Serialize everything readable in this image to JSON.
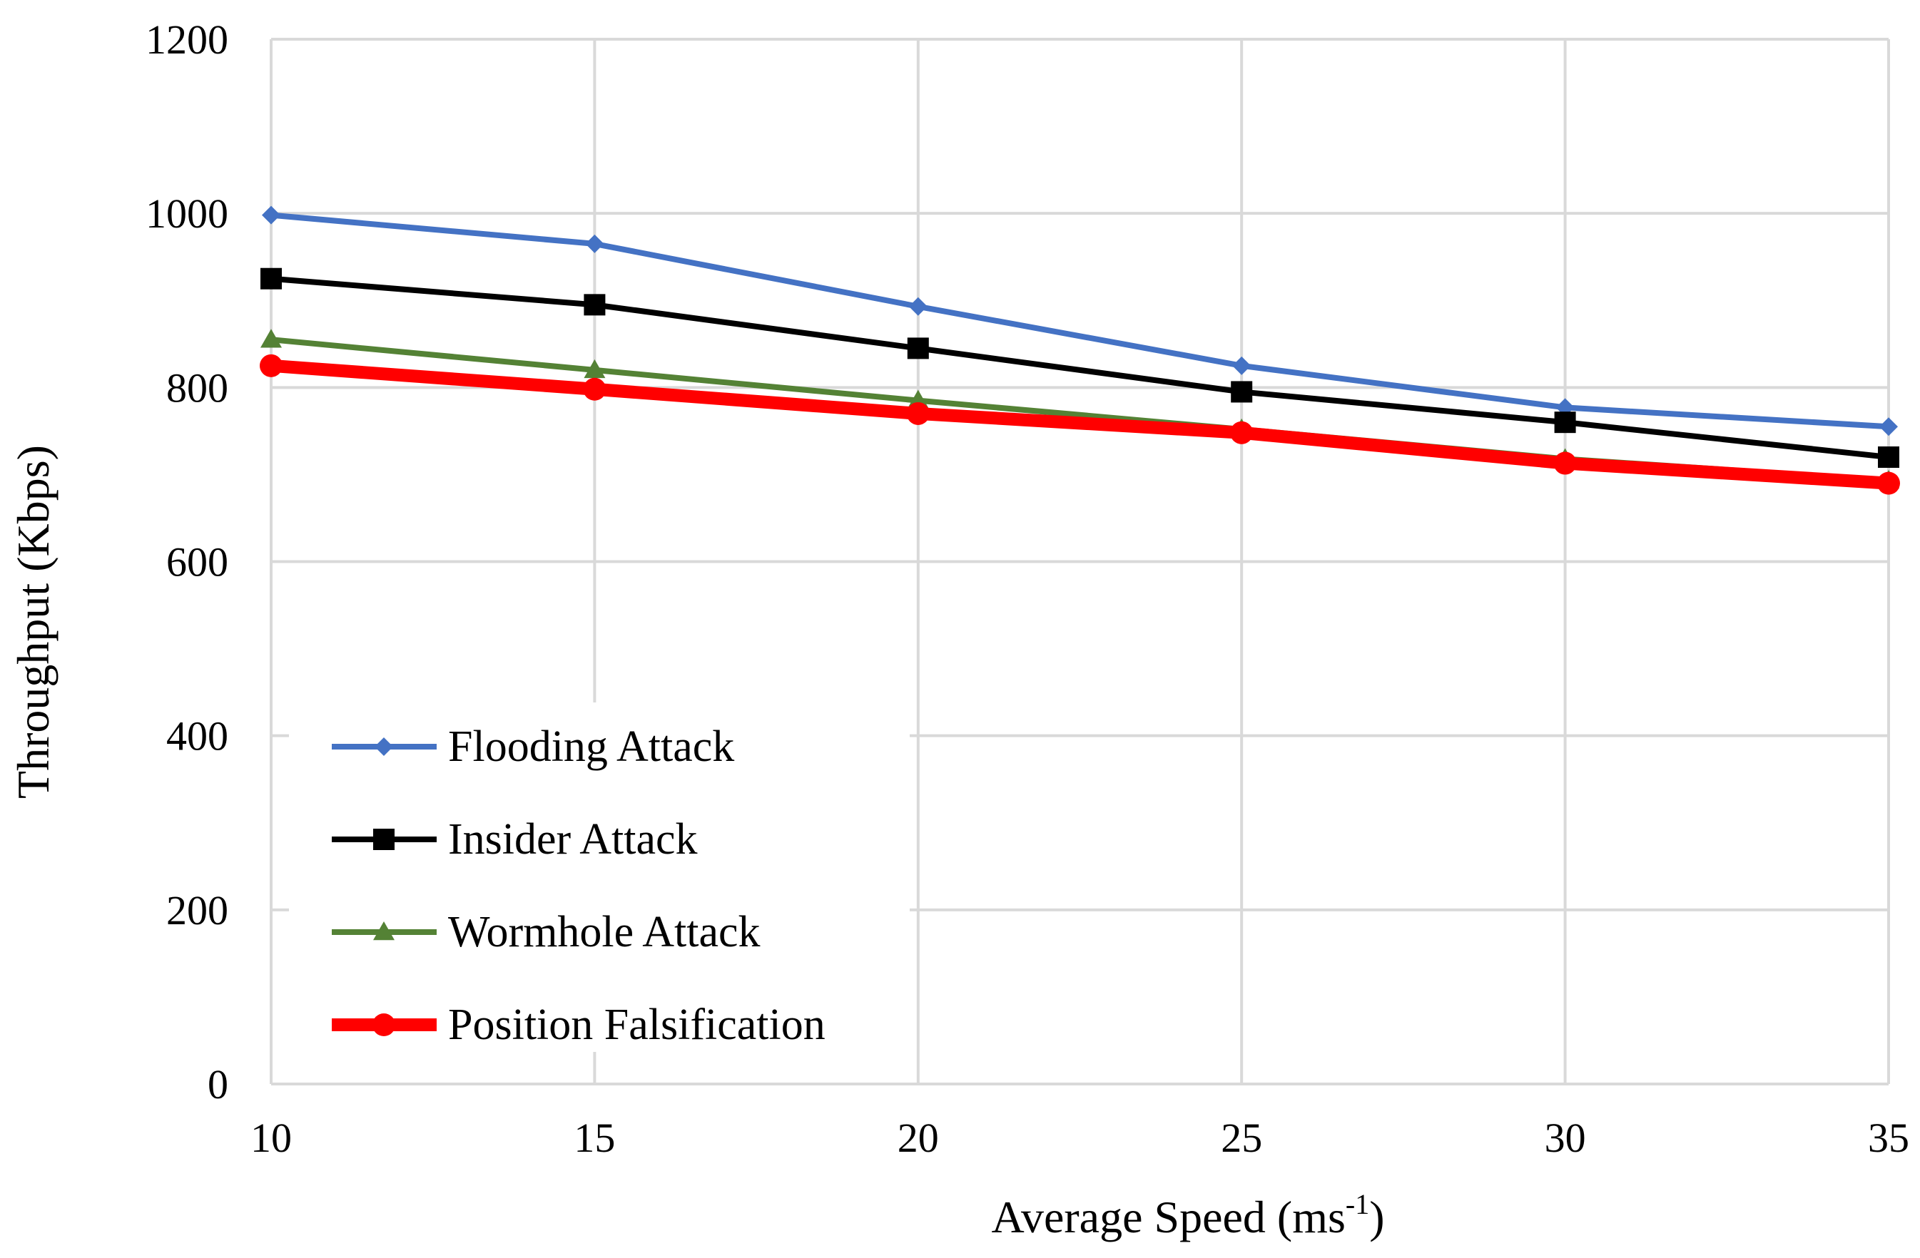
{
  "chart_data": {
    "type": "line",
    "title": "",
    "xlabel": "Average Speed (ms",
    "xlabel_superscript": "-1",
    "xlabel_suffix": ")",
    "ylabel": "Throughput (Kbps)",
    "x": [
      10,
      15,
      20,
      25,
      30,
      35
    ],
    "x_tick_labels": [
      "10",
      "15",
      "20",
      "25",
      "30",
      "35"
    ],
    "y_tick_labels": [
      "0",
      "200",
      "400",
      "600",
      "800",
      "1000",
      "1200"
    ],
    "xlim": [
      10,
      35
    ],
    "ylim": [
      0,
      1200
    ],
    "grid": true,
    "legend_position": "bottom-left",
    "series": [
      {
        "name": "Flooding Attack",
        "values": [
          998,
          965,
          893,
          825,
          777,
          755
        ],
        "color": "#4472C4",
        "marker": "diamond",
        "line_weight": "thin"
      },
      {
        "name": "Insider Attack",
        "values": [
          925,
          895,
          845,
          795,
          760,
          720
        ],
        "color": "#000000",
        "marker": "square",
        "line_weight": "thin"
      },
      {
        "name": "Wormhole Attack",
        "values": [
          855,
          820,
          785,
          752,
          718,
          693
        ],
        "color": "#548235",
        "marker": "triangle",
        "line_weight": "thin"
      },
      {
        "name": "Position Falsification",
        "values": [
          825,
          798,
          770,
          748,
          713,
          690
        ],
        "color": "#FF0000",
        "marker": "circle",
        "line_weight": "thick"
      }
    ]
  }
}
